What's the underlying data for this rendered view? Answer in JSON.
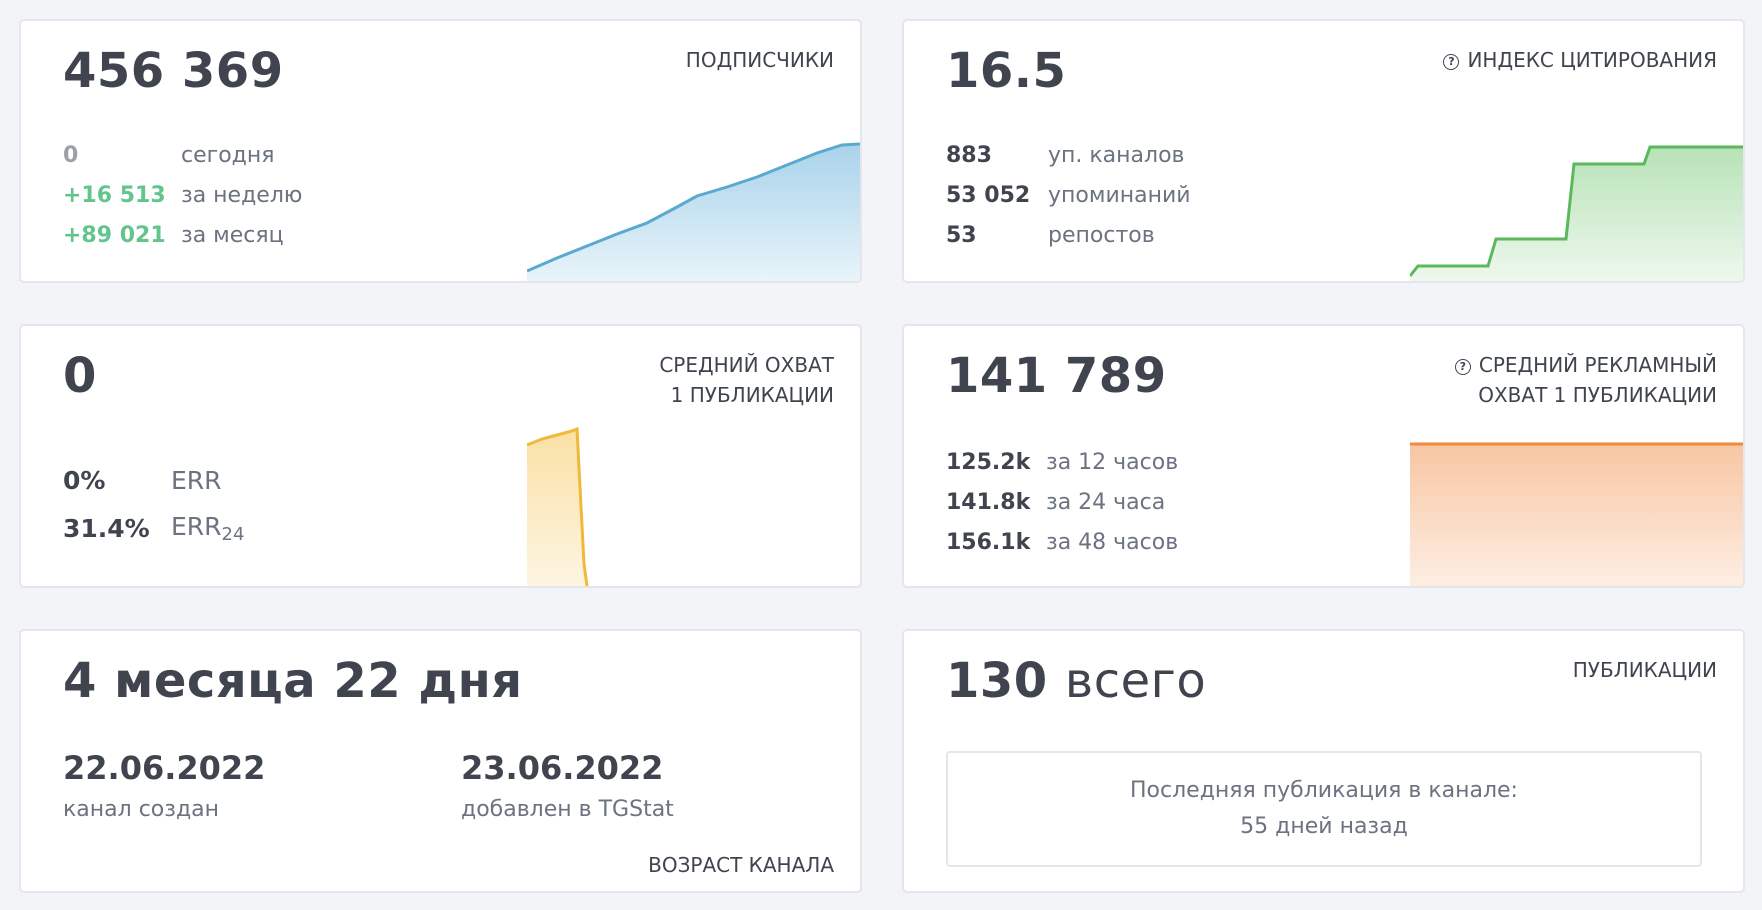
{
  "subscribers": {
    "label": "ПОДПИСЧИКИ",
    "total": "456 369",
    "rows": [
      {
        "value": "0",
        "text": "сегодня"
      },
      {
        "value": "+16 513",
        "text": "за неделю"
      },
      {
        "value": "+89 021",
        "text": "за месяц"
      }
    ],
    "color": "#5aa9cf"
  },
  "citation": {
    "label": "ИНДЕКС ЦИТИРОВАНИЯ",
    "help_icon": "question-circle-icon",
    "total": "16.5",
    "rows": [
      {
        "value": "883",
        "text": "уп. каналов"
      },
      {
        "value": "53 052",
        "text": "упоминаний"
      },
      {
        "value": "53",
        "text": "репостов"
      }
    ],
    "color": "#5cb85c"
  },
  "reach": {
    "label_line1": "СРЕДНИЙ ОХВАТ",
    "label_line2": "1 ПУБЛИКАЦИИ",
    "total": "0",
    "rows": [
      {
        "value": "0%",
        "text": "ERR",
        "sub": ""
      },
      {
        "value": "31.4%",
        "text": "ERR",
        "sub": "24"
      }
    ],
    "color": "#f0b93a"
  },
  "ad_reach": {
    "label_line1": "СРЕДНИЙ РЕКЛАМНЫЙ",
    "label_line2": "ОХВАТ 1 ПУБЛИКАЦИИ",
    "help_icon": "question-circle-icon",
    "total": "141 789",
    "rows": [
      {
        "value": "125.2k",
        "text": "за 12 часов"
      },
      {
        "value": "141.8k",
        "text": "за 24 часа"
      },
      {
        "value": "156.1k",
        "text": "за 48 часов"
      }
    ],
    "color": "#f08a3c"
  },
  "age": {
    "total": "4 месяца 22 дня",
    "created_value": "22.06.2022",
    "created_text": "канал создан",
    "added_value": "23.06.2022",
    "added_text": "добавлен в TGStat",
    "label": "ВОЗРАСТ КАНАЛА"
  },
  "posts": {
    "count": "130",
    "count_suffix": "всего",
    "label": "ПУБЛИКАЦИИ",
    "last_line1": "Последняя публикация в канале:",
    "last_line2": "55 дней назад"
  }
}
